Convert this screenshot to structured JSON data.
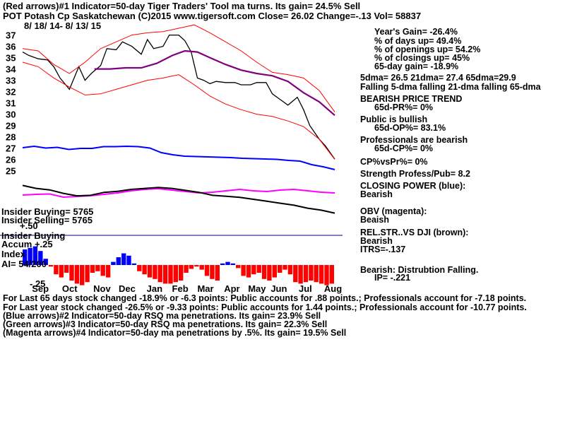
{
  "header": {
    "line1": "(Red arrows)#1 Indicator=50-day Tiger Traders' Tool ma turns. Its gain= 24.5% Sell",
    "line2": "POT    Potash Cp Saskatchewan  (C)2015 www.tigersoft.com      Close=   26.02  Change=-.13 Vol= 58837",
    "dates": "8/ 18/ 14- 8/ 13/ 15"
  },
  "colors": {
    "price": "#000000",
    "bands": "#ff0000",
    "ma65": "#800080",
    "closing_power": "#0000ff",
    "obv": "#ff00ff",
    "rel_strength": "#000000",
    "accum_pos": "#0000ff",
    "accum_neg": "#ff0000",
    "volume": "#c08000"
  },
  "panel_labels": {
    "insider_buying_1": "Insider Buying= 5765",
    "insider_selling": "Insider Selling= 5765",
    "plus50": "+.50",
    "insider_buying_2": "Insider Buying",
    "accum": "Accum  +.25",
    "index": "Index",
    "ai": "AI= 54/200",
    "minus25": "-.25"
  },
  "stats": [
    "Year's Gain= -26.4%",
    "% of days up= 49.4%",
    "% of openings up= 54.2%",
    "% of closings up= 45%",
    "65-day gain= -18.9%",
    "5dma= 26.5  21dma= 27.4  65dma=29.9",
    "Falling 5-dma  falling 21-dma  falling 65-dma",
    "BEARISH PRICE TREND",
    "65d-PR%= 0%",
    "Public is bullish",
    "65d-OP%= 83.1%",
    "Professionals are bearish",
    "65d-CP%= 0%",
    "CP%vsPr%=  0%",
    "Strength Profess/Pub= 8.2",
    "CLOSING POWER (blue):",
    "Bearish",
    "OBV (magenta):",
    "Beaish",
    "REL.STR..VS DJI (brown):",
    "Bearish",
    "ITRS=-.137",
    "Bearish: Distrubtion Falling.",
    "IP= -.221"
  ],
  "footer": [
    "For Last 65 days stock changed -18.9% or -6.3 points:  Public accounts for  .88 points.;  Professionals account for -7.18 points.",
    "For Last year stock changed -26.5% or -9.33 points:  Public accounts for  1.44 points.;  Professionals account for -10.77 points.",
    "(Blue arrows)#2 Indicator=50-day RSQ ma penetrations. Its gain= 23.9% Sell",
    "(Green arrows)#3 Indicator=50-day RSQ ma penetrations. Its gain= 22.3% Sell",
    "(Magenta arrows)#4 Indicator=50-day ma penetrations by .5%. Its gain= 19.5% Sell"
  ],
  "chart_data": {
    "type": "line",
    "title": "POT Potash Cp Saskatchewan",
    "y_ticks": [
      37,
      36,
      35,
      34,
      33,
      32,
      31,
      30,
      29,
      28,
      27,
      26,
      25
    ],
    "ylim": [
      24.6,
      37.6
    ],
    "month_labels": [
      "Sep",
      "Oct",
      "Nov",
      "Dec",
      "Jan",
      "Feb",
      "Mar",
      "Apr",
      "May",
      "Jun",
      "Jul",
      "Aug"
    ],
    "month_positions": [
      0.035,
      0.148,
      0.265,
      0.36,
      0.465,
      0.56,
      0.655,
      0.755,
      0.845,
      0.93,
      1.035,
      1.13
    ],
    "series": [
      {
        "name": "Price",
        "x": [
          0,
          0.02,
          0.05,
          0.08,
          0.1,
          0.12,
          0.15,
          0.18,
          0.2,
          0.22,
          0.25,
          0.27,
          0.3,
          0.32,
          0.35,
          0.38,
          0.4,
          0.42,
          0.45,
          0.47,
          0.5,
          0.52,
          0.54,
          0.56,
          0.58,
          0.6,
          0.62,
          0.65,
          0.68,
          0.7,
          0.73,
          0.75,
          0.78,
          0.8,
          0.83,
          0.85,
          0.88,
          0.9,
          0.92,
          0.95,
          0.97,
          1
        ],
        "values": [
          35.5,
          35.2,
          34.9,
          34.8,
          34.2,
          33.2,
          32.2,
          34.2,
          33.0,
          33.6,
          34.3,
          35.8,
          35.7,
          36.4,
          36.0,
          35.3,
          36.6,
          35.8,
          36.0,
          37.0,
          37.0,
          36.5,
          35.5,
          33.2,
          33.0,
          32.7,
          32.9,
          32.8,
          32.8,
          32.6,
          32.6,
          32.8,
          32.8,
          31.8,
          31.2,
          30.8,
          31.5,
          30.4,
          29.0,
          27.8,
          27.2,
          26.02
        ]
      },
      {
        "name": "65-dma",
        "x": [
          0.23,
          0.28,
          0.33,
          0.38,
          0.43,
          0.48,
          0.52,
          0.56,
          0.6,
          0.65,
          0.7,
          0.75,
          0.8,
          0.85,
          0.9,
          0.95,
          1
        ],
        "values": [
          34.0,
          34.0,
          34.1,
          34.1,
          34.5,
          35.2,
          35.6,
          35.5,
          35.0,
          34.4,
          33.9,
          33.6,
          33.4,
          32.9,
          31.9,
          31.1,
          29.9
        ]
      },
      {
        "name": "Upper band",
        "x": [
          0,
          0.05,
          0.1,
          0.15,
          0.2,
          0.25,
          0.3,
          0.35,
          0.4,
          0.45,
          0.5,
          0.55,
          0.6,
          0.65,
          0.7,
          0.75,
          0.8,
          0.85,
          0.9,
          0.95,
          1
        ],
        "values": [
          35.8,
          35.6,
          34.4,
          33.6,
          34.6,
          35.8,
          36.4,
          37.0,
          37.2,
          37.3,
          37.6,
          37.9,
          37.2,
          36.4,
          35.6,
          34.6,
          33.7,
          33.5,
          33.2,
          32.1,
          30.2
        ]
      },
      {
        "name": "Lower band",
        "x": [
          0,
          0.05,
          0.1,
          0.15,
          0.2,
          0.25,
          0.3,
          0.35,
          0.4,
          0.45,
          0.5,
          0.55,
          0.6,
          0.65,
          0.7,
          0.75,
          0.8,
          0.85,
          0.9,
          0.95,
          1
        ],
        "values": [
          34.6,
          34.2,
          33.2,
          32.4,
          31.7,
          31.8,
          32.2,
          32.6,
          33.0,
          33.2,
          33.5,
          32.6,
          31.6,
          30.9,
          30.4,
          30.0,
          29.8,
          29.4,
          28.9,
          27.8,
          26.0
        ]
      }
    ],
    "closing_power": [
      0.3,
      0.5,
      0.25,
      0.35,
      0.05,
      0.2,
      0.2,
      0.45,
      0.45,
      0.5,
      0.45,
      0.25,
      -0.4,
      -0.7,
      -0.9,
      -0.95,
      -1.0,
      -1.05,
      -1.1,
      -1.2,
      -1.25,
      -1.3,
      -1.35,
      -1.5,
      -1.6,
      -2.1,
      -2.4,
      -2.8
    ],
    "obv": [
      0.0,
      0.1,
      0.15,
      -0.3,
      -0.2,
      -0.1,
      0.1,
      0.3,
      0.6,
      0.8,
      0.9,
      0.7,
      0.5,
      0.3,
      0.4,
      0.6,
      0.8,
      0.6,
      0.5,
      0.7,
      0.8,
      0.6,
      0.4,
      0.3
    ],
    "rel_strength": [
      0.9,
      0.6,
      0.45,
      0.1,
      -0.15,
      -0.1,
      0.2,
      0.3,
      0.5,
      0.6,
      0.7,
      0.6,
      0.4,
      0.2,
      -0.1,
      -0.2,
      -0.3,
      -0.5,
      -0.7,
      -0.9,
      -1.1,
      -1.4,
      -1.6,
      -1.9
    ],
    "accum_index": [
      0.2,
      0.22,
      0.24,
      0.18,
      0.08,
      -0.02,
      -0.12,
      -0.16,
      -0.1,
      -0.2,
      -0.24,
      -0.26,
      -0.22,
      -0.1,
      -0.08,
      -0.14,
      -0.16,
      0.04,
      0.1,
      0.15,
      0.12,
      0.02,
      -0.08,
      -0.12,
      -0.16,
      -0.18,
      -0.22,
      -0.24,
      -0.24,
      -0.22,
      -0.2,
      -0.1,
      -0.05,
      -0.02,
      -0.06,
      -0.14,
      -0.18,
      -0.2,
      0.02,
      0.04,
      0.02,
      -0.04,
      -0.14,
      -0.16,
      -0.12,
      -0.1,
      -0.18,
      -0.2,
      -0.16,
      -0.1,
      -0.06,
      -0.12,
      -0.22,
      -0.24,
      -0.22,
      -0.2,
      -0.22,
      -0.24,
      -0.26,
      -0.24
    ]
  }
}
